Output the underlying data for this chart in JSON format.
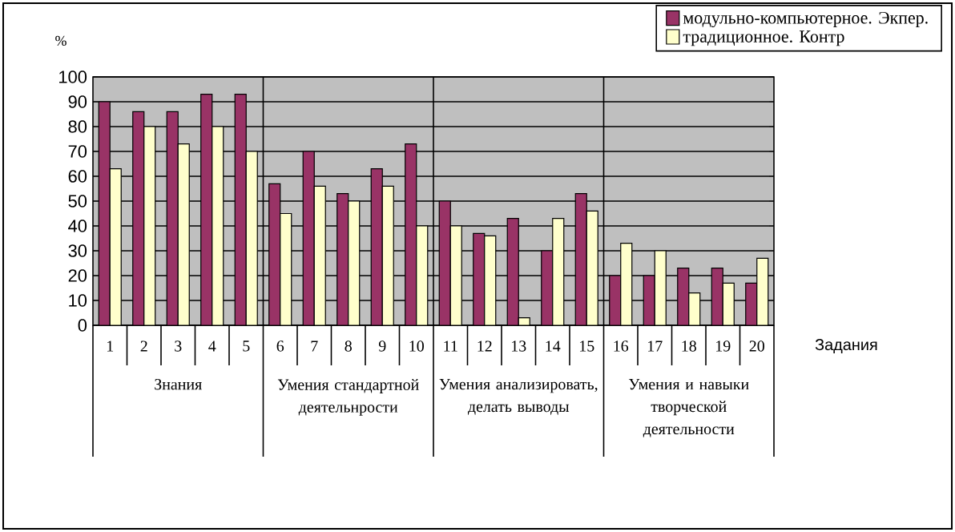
{
  "chart_data": {
    "type": "bar",
    "ylabel": "%",
    "xlabel": "Задания",
    "categories": [
      "1",
      "2",
      "3",
      "4",
      "5",
      "6",
      "7",
      "8",
      "9",
      "10",
      "11",
      "12",
      "13",
      "14",
      "15",
      "16",
      "17",
      "18",
      "19",
      "20"
    ],
    "series": [
      {
        "name": "модульно-компьютерное.  Экпер.",
        "color": "#993366",
        "values": [
          90,
          86,
          86,
          93,
          93,
          57,
          70,
          53,
          63,
          73,
          50,
          37,
          43,
          30,
          53,
          20,
          20,
          23,
          23,
          17
        ]
      },
      {
        "name": "традиционное.     Контр",
        "color": "#ffffcc",
        "values": [
          63,
          80,
          73,
          80,
          70,
          45,
          56,
          50,
          56,
          40,
          40,
          36,
          3,
          43,
          46,
          33,
          30,
          13,
          17,
          27
        ]
      }
    ],
    "annotations": [
      "Знания",
      "Умения стандартной деятельнрости",
      "Умения анализировать, делать выводы",
      "Умения и навыки творческой деятельности"
    ],
    "ylim": [
      0,
      100
    ],
    "yticks": [
      0,
      10,
      20,
      30,
      40,
      50,
      60,
      70,
      80,
      90,
      100
    ],
    "grid": "y",
    "legend": "top right"
  }
}
